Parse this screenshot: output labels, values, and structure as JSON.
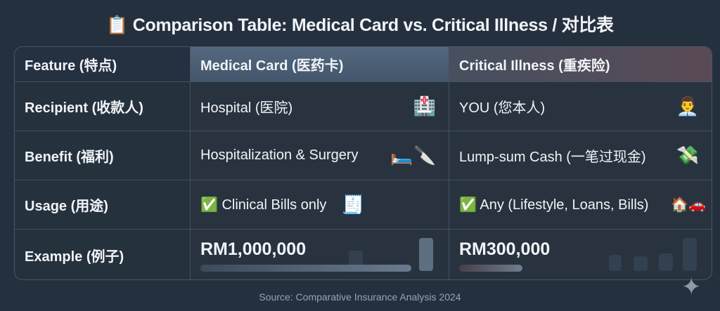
{
  "title": {
    "icon": "clipboard-icon",
    "text": "Comparison Table: Medical Card vs. Critical Illness / 对比表"
  },
  "table": {
    "headers": [
      "Feature (特点)",
      "Medical Card (医药卡)",
      "Critical Illness (重疾险)"
    ],
    "rows": [
      {
        "feature": "Recipient (收款人)",
        "medical": "Hospital (医院)",
        "medical_icon": "hospital-icon",
        "critical": "YOU (您本人)",
        "critical_icon": "person-icon"
      },
      {
        "feature": "Benefit (福利)",
        "medical": "Hospitalization & Surgery",
        "medical_icon": "bed-scalpel-icon",
        "critical": "Lump-sum Cash (一笔过现金)",
        "critical_icon": "money-hand-icon"
      },
      {
        "feature": "Usage (用途)",
        "medical": "✅ Clinical Bills only",
        "medical_icon": "bill-receipt-icon",
        "critical": "✅ Any (Lifestyle, Loans, Bills)",
        "critical_icon": "house-car-piggybank-icon"
      },
      {
        "feature": "Example (例子)",
        "medical": "RM1,000,000",
        "critical": "RM300,000"
      }
    ],
    "example_bar_fill": {
      "medical": 1.0,
      "critical": 0.3
    }
  },
  "colors": {
    "background": "#25303f",
    "medical_header": "#4d6177",
    "critical_header": "#54464f"
  },
  "source": "Source: Comparative Insurance Analysis 2024",
  "sparkle_icon": "sparkle-icon"
}
